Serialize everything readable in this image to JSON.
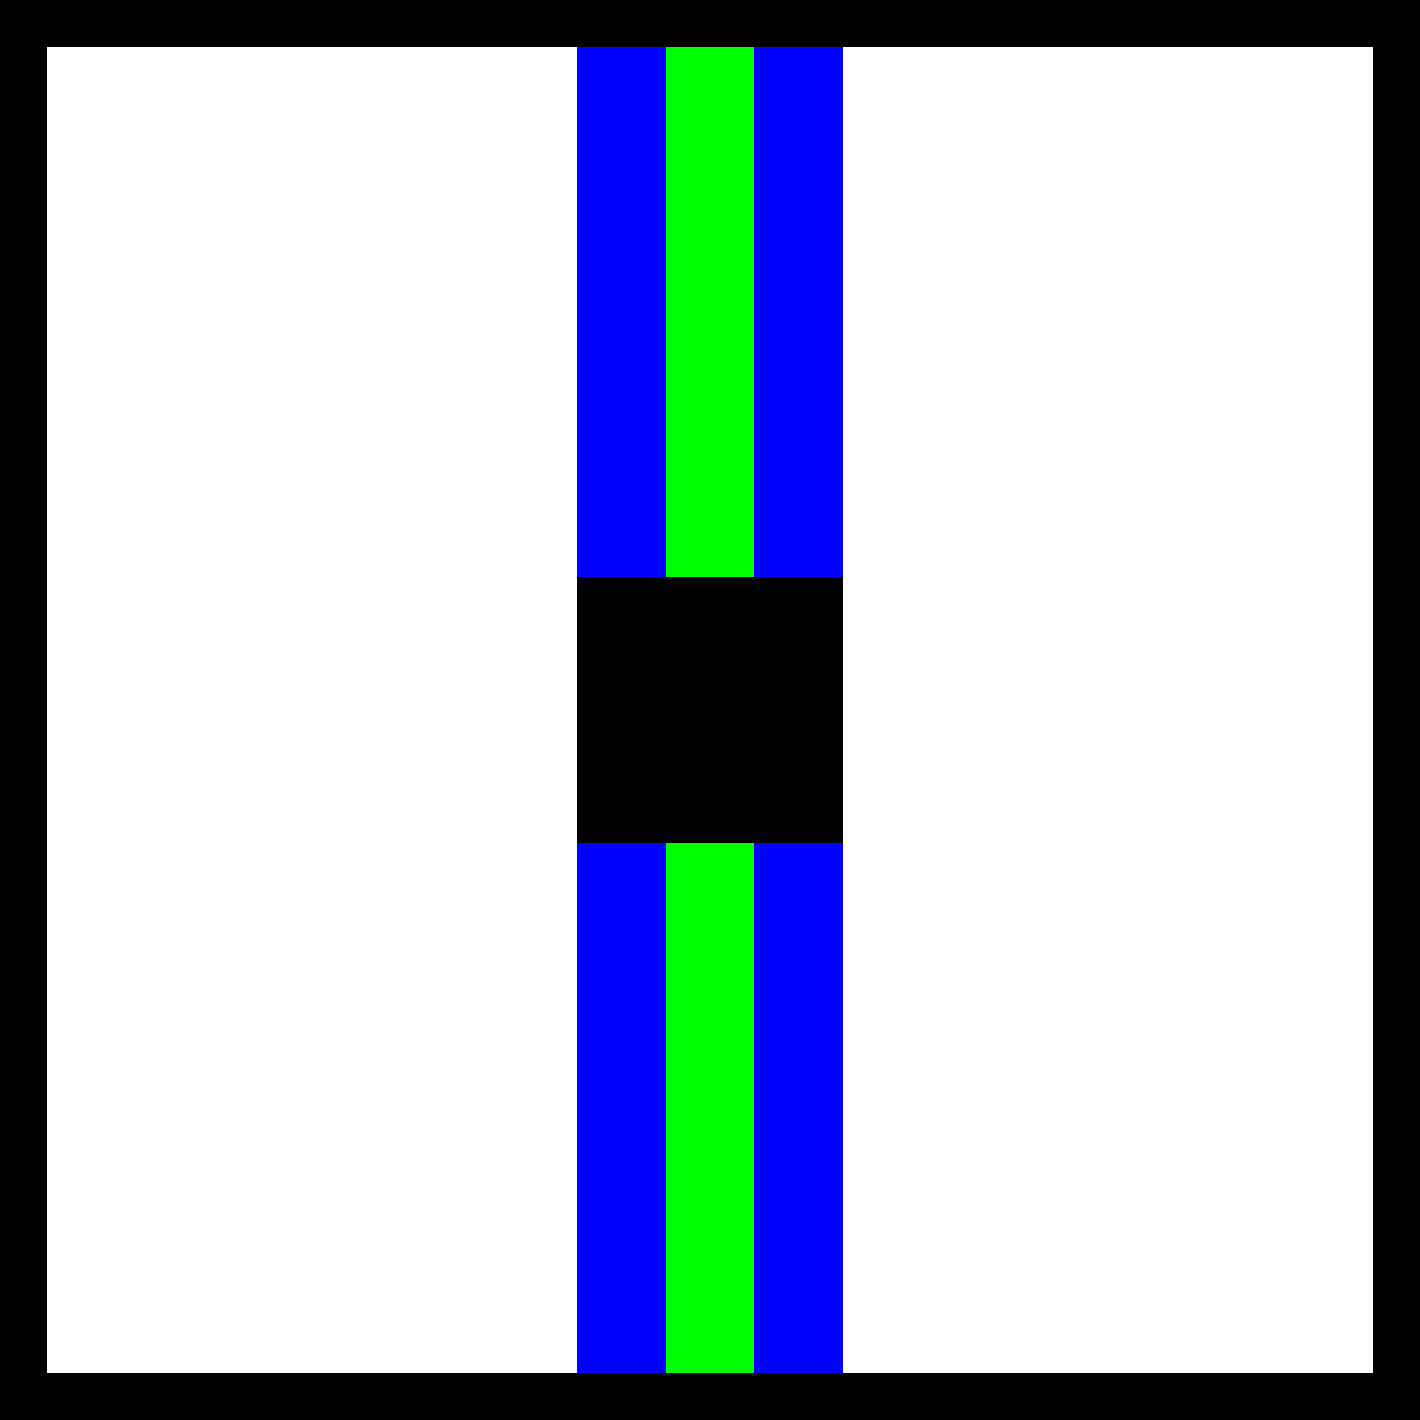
{
  "board": {
    "grid_size": 15,
    "frame_color": "#000000",
    "background_color": "#ffffff",
    "shapes": [
      {
        "kind": "outer-stripe",
        "color": "#0000ff",
        "col": 6,
        "row": 0,
        "cols": 1,
        "rows": 6
      },
      {
        "kind": "center-stripe",
        "color": "#00ff00",
        "col": 7,
        "row": 0,
        "cols": 1,
        "rows": 6
      },
      {
        "kind": "outer-stripe",
        "color": "#0000ff",
        "col": 8,
        "row": 0,
        "cols": 1,
        "rows": 6
      },
      {
        "kind": "center-block",
        "color": "#000000",
        "col": 6,
        "row": 6,
        "cols": 3,
        "rows": 3
      },
      {
        "kind": "outer-stripe",
        "color": "#0000ff",
        "col": 6,
        "row": 9,
        "cols": 1,
        "rows": 6
      },
      {
        "kind": "center-stripe",
        "color": "#00ff00",
        "col": 7,
        "row": 9,
        "cols": 1,
        "rows": 6
      },
      {
        "kind": "outer-stripe",
        "color": "#0000ff",
        "col": 8,
        "row": 9,
        "cols": 1,
        "rows": 6
      }
    ]
  }
}
